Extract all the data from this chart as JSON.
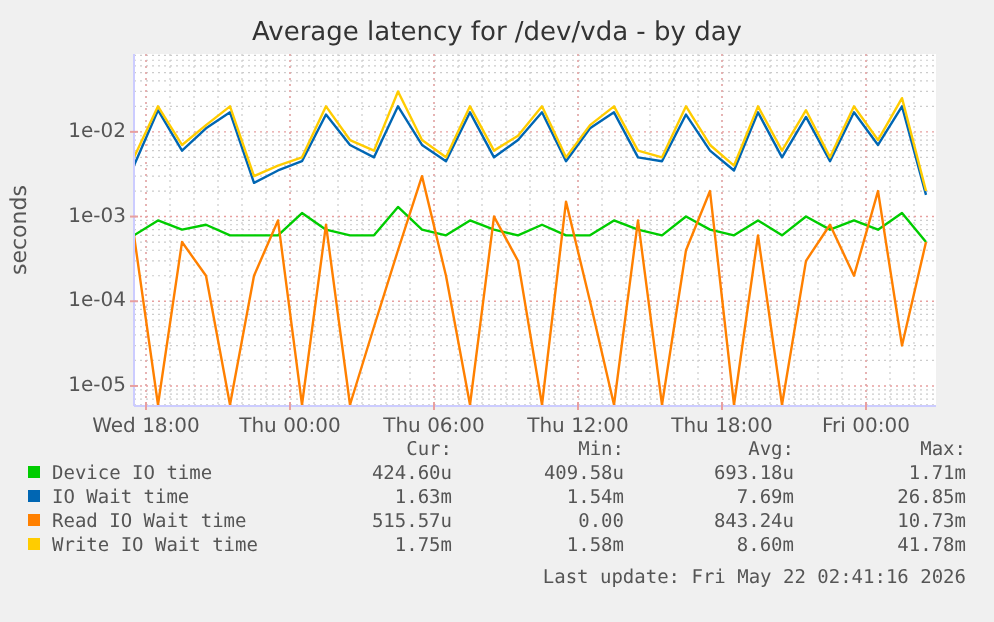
{
  "chart_data": {
    "type": "line",
    "title": "Average latency for /dev/vda - by day",
    "ylabel": "seconds",
    "log": "y",
    "grid": true,
    "legend": "bottom",
    "x": [
      "2026-05-20T17:30",
      "2026-05-20T18:30",
      "2026-05-20T19:30",
      "2026-05-20T20:30",
      "2026-05-20T21:30",
      "2026-05-20T22:30",
      "2026-05-20T23:30",
      "2026-05-21T00:30",
      "2026-05-21T01:30",
      "2026-05-21T02:30",
      "2026-05-21T03:30",
      "2026-05-21T04:30",
      "2026-05-21T05:30",
      "2026-05-21T06:30",
      "2026-05-21T07:30",
      "2026-05-21T08:30",
      "2026-05-21T09:30",
      "2026-05-21T10:30",
      "2026-05-21T11:30",
      "2026-05-21T12:30",
      "2026-05-21T13:30",
      "2026-05-21T14:30",
      "2026-05-21T15:30",
      "2026-05-21T16:30",
      "2026-05-21T17:30",
      "2026-05-21T18:30",
      "2026-05-21T19:30",
      "2026-05-21T20:30",
      "2026-05-21T21:30",
      "2026-05-21T22:30",
      "2026-05-21T23:30",
      "2026-05-22T00:30",
      "2026-05-22T01:30",
      "2026-05-22T02:30"
    ],
    "xlim": [
      "2026-05-20T17:30",
      "2026-05-22T02:55"
    ],
    "xticks": [
      {
        "value": "2026-05-20T18:00",
        "label": "Wed 18:00"
      },
      {
        "value": "2026-05-21T00:00",
        "label": "Thu 00:00"
      },
      {
        "value": "2026-05-21T06:00",
        "label": "Thu 06:00"
      },
      {
        "value": "2026-05-21T12:00",
        "label": "Thu 12:00"
      },
      {
        "value": "2026-05-21T18:00",
        "label": "Thu 18:00"
      },
      {
        "value": "2026-05-22T00:00",
        "label": "Fri 00:00"
      }
    ],
    "ylim": [
      5.8e-06,
      0.083
    ],
    "yticks": [
      {
        "value": 1e-05,
        "label": "1e-05"
      },
      {
        "value": 0.0001,
        "label": "1e-04"
      },
      {
        "value": 0.001,
        "label": "1e-03"
      },
      {
        "value": 0.01,
        "label": "1e-02"
      }
    ],
    "series": [
      {
        "name": "Device IO time",
        "color": "#00cc00",
        "values": [
          0.0006,
          0.0009,
          0.0007,
          0.0008,
          0.0006,
          0.0006,
          0.0006,
          0.0011,
          0.0007,
          0.0006,
          0.0006,
          0.0013,
          0.0007,
          0.0006,
          0.0009,
          0.0007,
          0.0006,
          0.0008,
          0.0006,
          0.0006,
          0.0009,
          0.0007,
          0.0006,
          0.001,
          0.0007,
          0.0006,
          0.0009,
          0.0006,
          0.001,
          0.0007,
          0.0009,
          0.0007,
          0.0011,
          0.0005
        ]
      },
      {
        "name": "IO Wait time",
        "color": "#0066b3",
        "values": [
          0.004,
          0.018,
          0.006,
          0.011,
          0.017,
          0.0025,
          0.0035,
          0.0045,
          0.016,
          0.007,
          0.005,
          0.02,
          0.007,
          0.0045,
          0.017,
          0.005,
          0.008,
          0.017,
          0.0045,
          0.011,
          0.017,
          0.005,
          0.0045,
          0.016,
          0.006,
          0.0035,
          0.017,
          0.005,
          0.015,
          0.0045,
          0.017,
          0.007,
          0.02,
          0.0018
        ]
      },
      {
        "name": "Read IO Wait time",
        "color": "#ff8000",
        "values": [
          0.0006,
          6e-06,
          0.0005,
          0.0002,
          6e-06,
          0.0002,
          0.0009,
          6e-06,
          0.0008,
          6e-06,
          5e-05,
          0.0004,
          0.003,
          0.0002,
          6e-06,
          0.001,
          0.0003,
          6e-06,
          0.0015,
          0.0001,
          6e-06,
          0.0009,
          6e-06,
          0.0004,
          0.002,
          6e-06,
          0.0006,
          6e-06,
          0.0003,
          0.0008,
          0.0002,
          0.002,
          3e-05,
          0.0005
        ]
      },
      {
        "name": "Write IO Wait time",
        "color": "#ffcc00",
        "values": [
          0.005,
          0.02,
          0.007,
          0.012,
          0.02,
          0.003,
          0.004,
          0.005,
          0.02,
          0.008,
          0.006,
          0.03,
          0.008,
          0.005,
          0.02,
          0.006,
          0.009,
          0.02,
          0.005,
          0.012,
          0.02,
          0.006,
          0.005,
          0.02,
          0.007,
          0.004,
          0.02,
          0.006,
          0.018,
          0.005,
          0.02,
          0.008,
          0.025,
          0.002
        ]
      }
    ],
    "annotations": [
      "Cur:",
      "Min:",
      "Avg:",
      "Max:",
      "424.60u",
      "409.58u",
      "693.18u",
      "1.71m",
      "1.63m",
      "1.54m",
      "7.69m",
      "26.85m",
      "515.57u",
      "0.00",
      "843.24u",
      "10.73m",
      "1.75m",
      "1.58m",
      "8.60m",
      "41.78m",
      "Last update: Fri May 22 02:41:16 2026"
    ]
  }
}
